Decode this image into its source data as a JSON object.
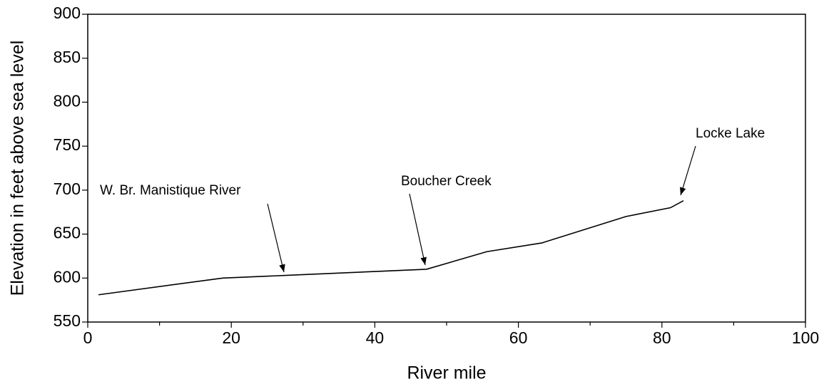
{
  "chart_data": {
    "type": "line",
    "xlabel": "River mile",
    "ylabel": "Elevation in feet above sea level",
    "x": [
      1.5,
      18.8,
      27.5,
      47.2,
      55.6,
      63.3,
      75,
      81.2,
      83
    ],
    "series": [
      {
        "color": "#000000",
        "values": [
          581,
          600,
          603,
          610,
          630,
          640,
          670,
          680,
          688
        ]
      }
    ],
    "xlim": [
      0,
      100
    ],
    "xticks": [
      0,
      20,
      40,
      60,
      80,
      100
    ],
    "xminorticks": [
      10,
      30,
      50,
      70,
      90
    ],
    "ylim": [
      550,
      900
    ],
    "yticks": [
      550,
      600,
      650,
      700,
      750,
      800,
      850,
      900
    ],
    "annotations": [
      "W. Br. Manistique River",
      "Boucher Creek",
      "Locke Lake"
    ],
    "grid": false
  }
}
